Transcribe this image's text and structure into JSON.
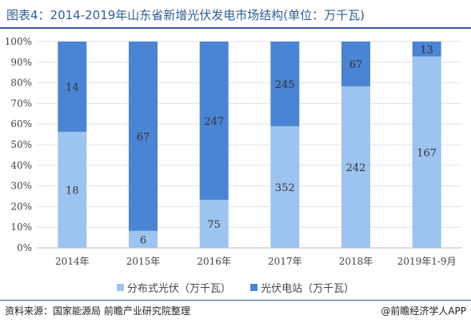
{
  "title": "图表4：2014-2019年山东省新增光伏发电市场结构(单位：万千瓦)",
  "source": "资料来源：国家能源局 前瞻产业研究院整理",
  "brand": "@前瞻经济学人APP",
  "colors": {
    "distributed": "#9dc3f0",
    "station": "#4a84d4",
    "title": "#2f5d96"
  },
  "chart_data": {
    "type": "bar",
    "stacked": "percent",
    "categories": [
      "2014年",
      "2015年",
      "2016年",
      "2017年",
      "2018年",
      "2019年1-9月"
    ],
    "series": [
      {
        "name": "分布式光伏（万千瓦）",
        "values": [
          18,
          6,
          75,
          352,
          242,
          167
        ]
      },
      {
        "name": "光伏电站（万千瓦）",
        "values": [
          14,
          67,
          247,
          245,
          67,
          13
        ]
      }
    ],
    "yticks": [
      "0%",
      "10%",
      "20%",
      "30%",
      "40%",
      "50%",
      "60%",
      "70%",
      "80%",
      "90%",
      "100%"
    ],
    "ylim": [
      0,
      100
    ],
    "legend": "bottom",
    "grid": true
  }
}
